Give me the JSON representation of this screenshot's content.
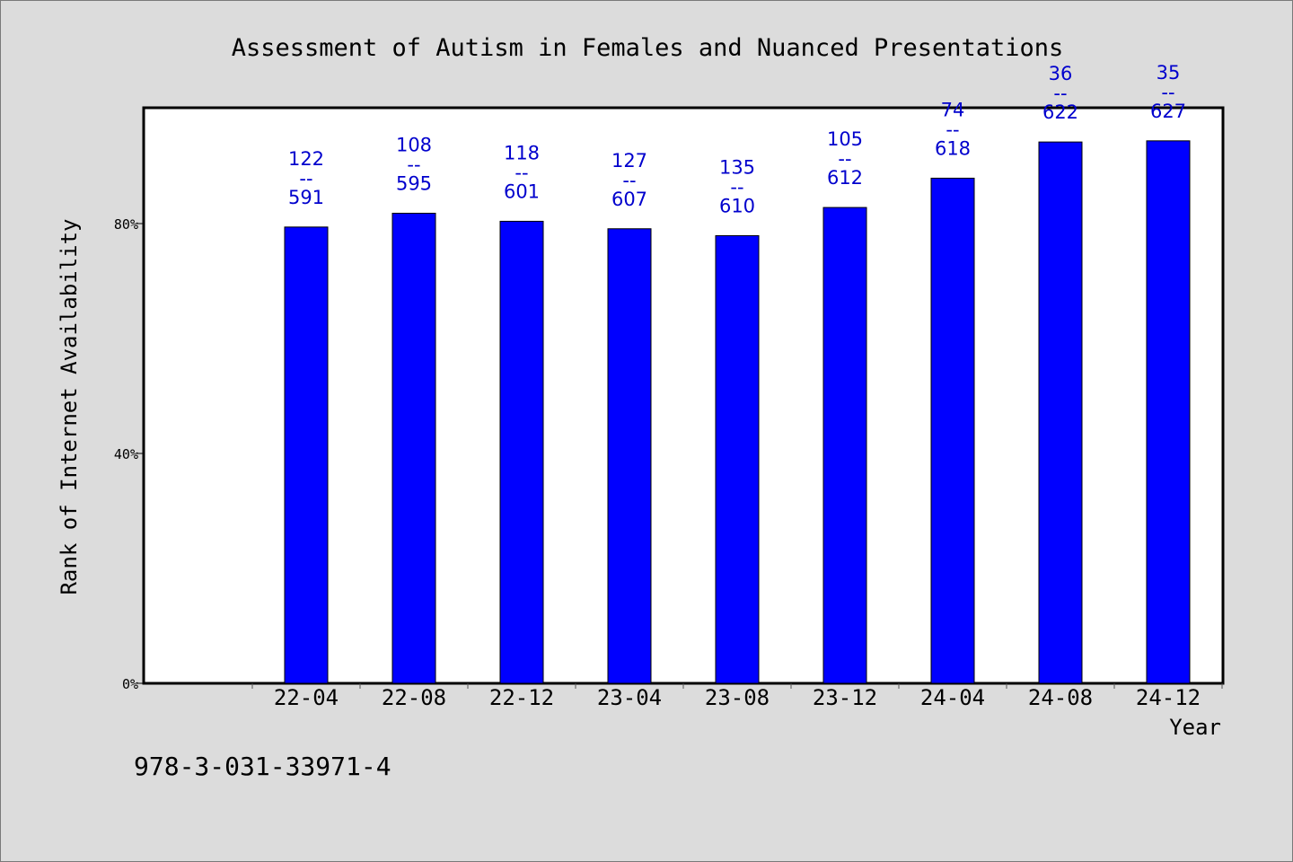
{
  "chart_data": {
    "type": "bar",
    "title": "Assessment of Autism in Females and Nuanced Presentations",
    "xlabel": "Year",
    "ylabel": "Rank of Internet Availability",
    "ylim": [
      0,
      100
    ],
    "y_ticks": [
      {
        "value": 0,
        "label": "0%"
      },
      {
        "value": 40,
        "label": "40%"
      },
      {
        "value": 80,
        "label": "80%"
      }
    ],
    "categories": [
      "22-04",
      "22-08",
      "22-12",
      "23-04",
      "23-08",
      "23-12",
      "24-04",
      "24-08",
      "24-12"
    ],
    "values": [
      79.4,
      81.8,
      80.4,
      79.1,
      77.9,
      82.8,
      87.9,
      94.2,
      94.4
    ],
    "bar_labels": [
      [
        "122",
        "--",
        "591"
      ],
      [
        "108",
        "--",
        "595"
      ],
      [
        "118",
        "--",
        "601"
      ],
      [
        "127",
        "--",
        "607"
      ],
      [
        "135",
        "--",
        "610"
      ],
      [
        "105",
        "--",
        "612"
      ],
      [
        "74",
        "--",
        "618"
      ],
      [
        "36",
        "--",
        "622"
      ],
      [
        "35",
        "--",
        "627"
      ]
    ],
    "grid": false,
    "colors": {
      "bar": "#0000ff",
      "bar_label": "#0000cd",
      "background": "#dcdcdc",
      "plot_background": "#ffffff"
    }
  },
  "footnote": "978-3-031-33971-4"
}
